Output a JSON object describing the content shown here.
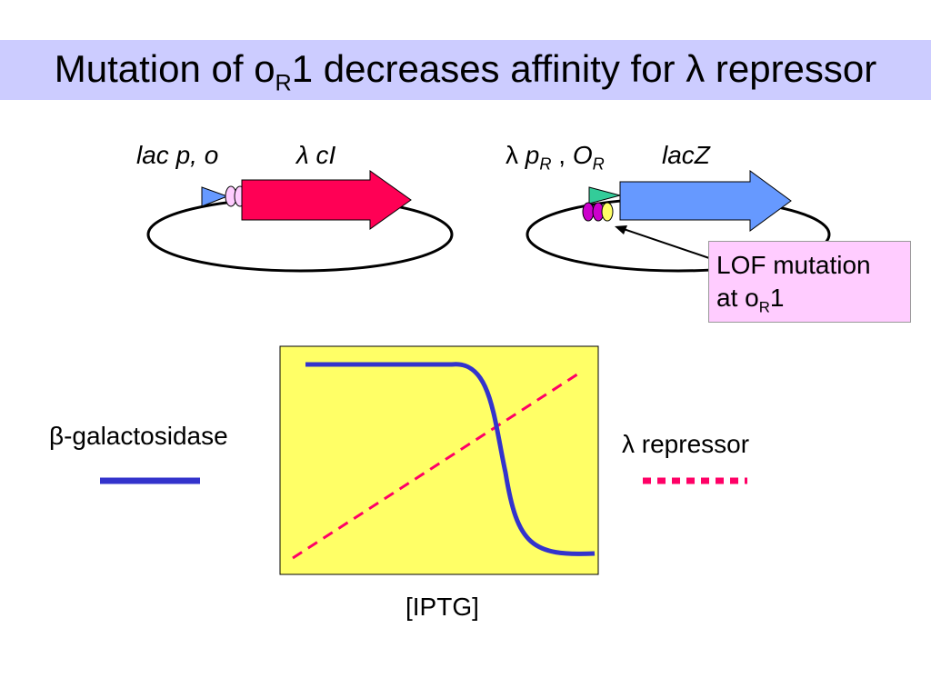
{
  "title": {
    "prefix": "Mutation of o",
    "sub": "R",
    "suffix": "1 decreases affinity for λ repressor"
  },
  "left_construct": {
    "promoter_label": "lac p, o",
    "gene_label": "λ cI"
  },
  "right_construct": {
    "promoter_symbol": "λ",
    "promoter_p": "p",
    "promoter_p_sub": "R",
    "promoter_sep": " , ",
    "promoter_o": "O",
    "promoter_o_sub": "R",
    "gene_label": "lacZ"
  },
  "callout": {
    "line1": "LOF mutation",
    "line2_prefix": "at o",
    "line2_sub": "R",
    "line2_suffix": "1"
  },
  "graph": {
    "xlabel": "[IPTG]",
    "legend_left": "β-galactosidase",
    "legend_right": "λ repressor"
  },
  "colors": {
    "title_bar": "#ccccff",
    "graph_bg": "#ffff66",
    "beta_gal_line": "#3333cc",
    "repressor_line": "#ff0066",
    "cI_arrow": "#ff0055",
    "lacZ_arrow": "#6699ff",
    "callout_bg": "#ffccff"
  }
}
